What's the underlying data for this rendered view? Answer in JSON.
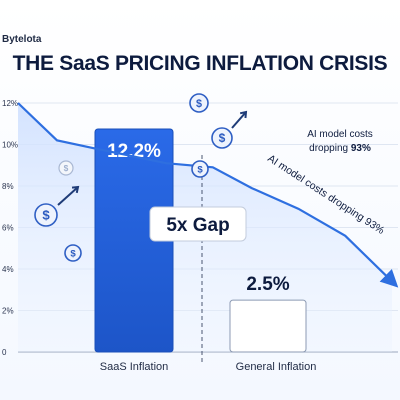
{
  "brand": "Bytelota",
  "chart_data": {
    "type": "bar",
    "title": "THE SaaS PRICING INFLATION CRISIS",
    "categories": [
      "SaaS Inflation",
      "General Inflation"
    ],
    "values": [
      12.2,
      2.5
    ],
    "value_labels": [
      "12.2%",
      "2.5%"
    ],
    "ylim": [
      0,
      12
    ],
    "yticks": [
      0,
      2,
      4,
      6,
      8,
      10,
      12
    ],
    "ytick_labels": [
      "0",
      "2%",
      "4%",
      "6%",
      "8%",
      "10%",
      "12%"
    ],
    "bar_colors": [
      "#1f5fd9",
      "#ffffff"
    ],
    "trend_line": {
      "label": "AI model costs dropping 93%",
      "color": "#2e6fe0",
      "points": [
        {
          "x": 0.0,
          "y": 12.0
        },
        {
          "x": 0.5,
          "y": 10.2
        },
        {
          "x": 1.0,
          "y": 9.8
        },
        {
          "x": 1.9,
          "y": 9.1
        },
        {
          "x": 2.5,
          "y": 8.9
        },
        {
          "x": 3.0,
          "y": 7.9
        },
        {
          "x": 3.6,
          "y": 6.9
        },
        {
          "x": 4.2,
          "y": 5.6
        },
        {
          "x": 4.8,
          "y": 3.4
        }
      ]
    },
    "gap_label": "5x Gap",
    "annotation": {
      "line1": "AI model costs",
      "line2_prefix": "dropping ",
      "line2_value": "93%"
    },
    "grid": true
  },
  "colors": {
    "accent": "#1f5fd9",
    "trend": "#2e6fe0",
    "text": "#0d1b3e"
  },
  "icons": [
    "dollar-coin-icon",
    "up-arrow-icon"
  ]
}
